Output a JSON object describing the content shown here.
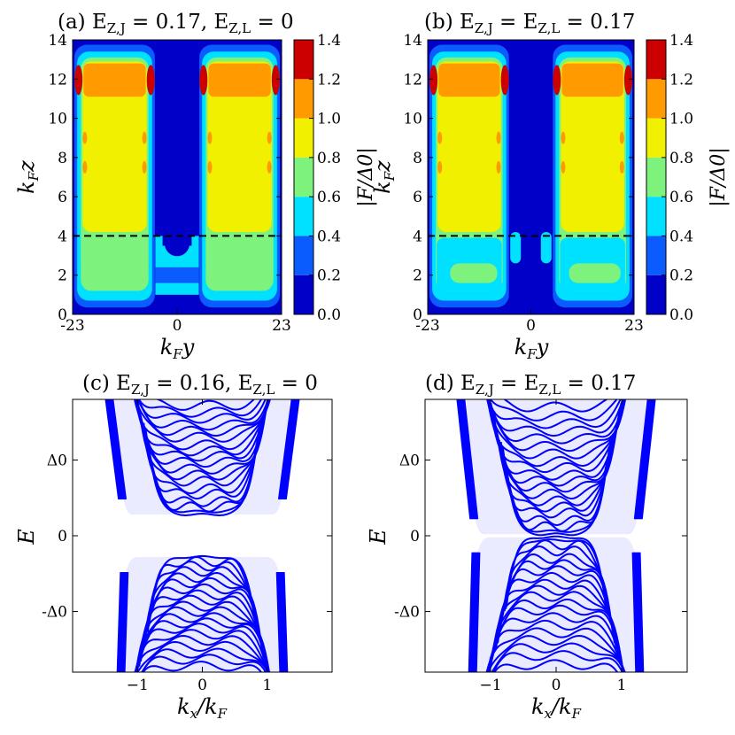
{
  "colors": {
    "levels": [
      "#0000c8",
      "#0a5cff",
      "#00e0ff",
      "#7df27d",
      "#f0f000",
      "#ff9a00",
      "#ff6600",
      "#cc0000"
    ],
    "band_lines": "#0000ff",
    "dashed": "#000000"
  },
  "chart_data": [
    {
      "panel": "a",
      "type": "heatmap",
      "title": "(a) E_{Z,J} = 0.17, E_{Z,L} = 0",
      "title_main": "(a) E",
      "title_sub1": "Z,J",
      "title_mid": " = 0.17, E",
      "title_sub2": "Z,L",
      "title_end": " = 0",
      "xlabel": "k_F y",
      "ylabel": "k_F z",
      "xlim": [
        -23,
        23
      ],
      "ylim": [
        0,
        14
      ],
      "xticks": [
        "-23",
        "0",
        "23"
      ],
      "yticks": [
        "0",
        "2",
        "4",
        "6",
        "8",
        "10",
        "12",
        "14"
      ],
      "dashed_line_y": 4,
      "colorbar_label": "|F/Δ0|",
      "colorbar_ticks": [
        "0.0",
        "0.2",
        "0.4",
        "0.6",
        "0.8",
        "1.0",
        "1.2",
        "1.4"
      ],
      "colorbar_levels": [
        0,
        0.2,
        0.4,
        0.6,
        0.8,
        1.0,
        1.2,
        1.4
      ],
      "regions": {
        "left_block": [
          -23,
          -4.5
        ],
        "right_block": [
          4.5,
          23
        ],
        "gap_center": 0,
        "junction_bridge_top": 4.0
      }
    },
    {
      "panel": "b",
      "type": "heatmap",
      "title": "(b) E_{Z,J} = E_{Z,L} = 0.17",
      "title_main": "(b) E",
      "title_sub1": "Z,J",
      "title_mid": " = E",
      "title_sub2": "Z,L",
      "title_end": " = 0.17",
      "xlabel": "k_F y",
      "ylabel": "k_F z",
      "xlim": [
        -23,
        23
      ],
      "ylim": [
        0,
        14
      ],
      "xticks": [
        "-23",
        "0",
        "23"
      ],
      "yticks": [
        "0",
        "2",
        "4",
        "6",
        "8",
        "10",
        "12",
        "14"
      ],
      "dashed_line_y": 4,
      "colorbar_label": "|F/Δ0|",
      "colorbar_ticks": [
        "0.0",
        "0.2",
        "0.4",
        "0.6",
        "0.8",
        "1.0",
        "1.2",
        "1.4"
      ],
      "colorbar_levels": [
        0,
        0.2,
        0.4,
        0.6,
        0.8,
        1.0,
        1.2,
        1.4
      ],
      "regions": {
        "left_block": [
          -23,
          -4.5
        ],
        "right_block": [
          4.5,
          23
        ],
        "gap_center": 0
      }
    },
    {
      "panel": "c",
      "type": "line",
      "title": "(c) E_{Z,J} = 0.16, E_{Z,L} = 0",
      "title_main": "(c) E",
      "title_sub1": "Z,J",
      "title_mid": " = 0.16, E",
      "title_sub2": "Z,L",
      "title_end": " = 0",
      "xlabel": "k_x/k_F",
      "ylabel": "E",
      "xlim": [
        -2,
        2
      ],
      "ylim": [
        -1.8,
        1.8
      ],
      "xticks": [
        "−1",
        "0",
        "1"
      ],
      "xtick_values": [
        -1,
        0,
        1
      ],
      "yticks": [
        "Δ0",
        "0",
        "-Δ0"
      ],
      "ytick_values": [
        1,
        0,
        -1
      ],
      "gap": 0.28,
      "k_edge": 1.2,
      "levels_upper": [
        0.28,
        0.32,
        0.38,
        0.45,
        0.55,
        0.62,
        0.72,
        0.8,
        0.88,
        0.97,
        1.05,
        1.12,
        1.2,
        1.3,
        1.38,
        1.46,
        1.55,
        1.63,
        1.72
      ],
      "levels_lower": [
        -0.28,
        -0.34,
        -0.4,
        -0.47,
        -0.55,
        -0.62,
        -0.7,
        -0.78,
        -0.85,
        -0.93,
        -1.0,
        -1.08,
        -1.15,
        -1.22,
        -1.3,
        -1.38,
        -1.46,
        -1.55,
        -1.63,
        -1.72
      ]
    },
    {
      "panel": "d",
      "type": "line",
      "title": "(d) E_{Z,J} = E_{Z,L} = 0.17",
      "title_main": "(d) E",
      "title_sub1": "Z,J",
      "title_mid": " = E",
      "title_sub2": "Z,L",
      "title_end": " = 0.17",
      "xlabel": "k_x/k_F",
      "ylabel": "E",
      "xlim": [
        -2,
        2
      ],
      "ylim": [
        -1.8,
        1.8
      ],
      "xticks": [
        "−1",
        "0",
        "1"
      ],
      "xtick_values": [
        -1,
        0,
        1
      ],
      "yticks": [
        "Δ0",
        "0",
        "-Δ0"
      ],
      "ytick_values": [
        1,
        0,
        -1
      ],
      "gap": 0.02,
      "k_edge": 1.22,
      "levels_upper": [
        0.02,
        0.06,
        0.12,
        0.2,
        0.3,
        0.38,
        0.46,
        0.55,
        0.64,
        0.72,
        0.8,
        0.9,
        0.98,
        1.08,
        1.18,
        1.28,
        1.38,
        1.48,
        1.58,
        1.7
      ],
      "levels_lower": [
        -0.02,
        -0.06,
        -0.12,
        -0.2,
        -0.3,
        -0.38,
        -0.46,
        -0.55,
        -0.64,
        -0.72,
        -0.8,
        -0.9,
        -0.98,
        -1.08,
        -1.18,
        -1.28,
        -1.38,
        -1.48,
        -1.58,
        -1.7
      ]
    }
  ]
}
